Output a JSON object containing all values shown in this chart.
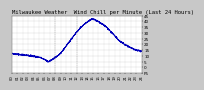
{
  "title": "Milwaukee Weather  Wind Chill per Minute (Last 24 Hours)",
  "line_color": "#0000bb",
  "bg_color": "#c8c8c8",
  "plot_bg_color": "#ffffff",
  "grid_color": "#aaaaaa",
  "ylim": [
    -5,
    45
  ],
  "title_fontsize": 4.0,
  "tick_fontsize": 3.0,
  "line_width": 0.5,
  "num_points": 1440,
  "vline_x": [
    0.33,
    0.5
  ],
  "control_points": [
    [
      0.0,
      12
    ],
    [
      0.08,
      11
    ],
    [
      0.14,
      10
    ],
    [
      0.18,
      9.5
    ],
    [
      0.22,
      8.5
    ],
    [
      0.25,
      7
    ],
    [
      0.27,
      5.5
    ],
    [
      0.28,
      5.0
    ],
    [
      0.29,
      5.5
    ],
    [
      0.31,
      7
    ],
    [
      0.34,
      9
    ],
    [
      0.38,
      13
    ],
    [
      0.44,
      22
    ],
    [
      0.5,
      31
    ],
    [
      0.55,
      37
    ],
    [
      0.6,
      41
    ],
    [
      0.62,
      42
    ],
    [
      0.64,
      41.5
    ],
    [
      0.68,
      39
    ],
    [
      0.73,
      35
    ],
    [
      0.78,
      29
    ],
    [
      0.83,
      23
    ],
    [
      0.87,
      20
    ],
    [
      0.9,
      18
    ],
    [
      0.92,
      17
    ],
    [
      0.93,
      16.5
    ],
    [
      0.94,
      16
    ],
    [
      0.95,
      15.5
    ],
    [
      0.96,
      15
    ],
    [
      0.97,
      14.5
    ],
    [
      0.975,
      15
    ],
    [
      0.98,
      14.5
    ],
    [
      0.99,
      14
    ],
    [
      1.0,
      14
    ]
  ],
  "noise_std": 0.35,
  "noise_seed": 42
}
